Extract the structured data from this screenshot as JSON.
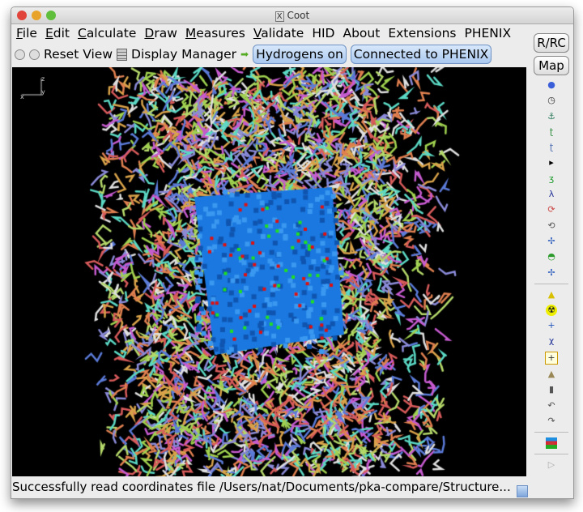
{
  "window": {
    "title": "Coot"
  },
  "menu": [
    {
      "pre": "",
      "u": "F",
      "post": "ile"
    },
    {
      "pre": "",
      "u": "E",
      "post": "dit"
    },
    {
      "pre": "",
      "u": "C",
      "post": "alculate"
    },
    {
      "pre": "",
      "u": "D",
      "post": "raw"
    },
    {
      "pre": "",
      "u": "M",
      "post": "easures"
    },
    {
      "pre": "",
      "u": "V",
      "post": "alidate"
    },
    {
      "pre": "HID",
      "u": "",
      "post": ""
    },
    {
      "pre": "About",
      "u": "",
      "post": ""
    },
    {
      "pre": "Extensions",
      "u": "",
      "post": ""
    },
    {
      "pre": "PHENIX",
      "u": "",
      "post": ""
    }
  ],
  "toolbar": {
    "reset_view": "Reset View",
    "display_manager": "Display Manager",
    "hydrogens": "Hydrogens on",
    "phenix": "Connected to PHENIX"
  },
  "side": {
    "rrc": "R/RC",
    "map": "Map",
    "icons": [
      "sphere-refine-icon",
      "clock-icon",
      "anchor-icon",
      "rotate-translate-zone-icon",
      "rigid-body-icon",
      "arrow-icon",
      "flip-peptide-icon",
      "side-chain-icon",
      "rotamer-icon",
      "auto-fit-rotamer-icon",
      "torsion-icon",
      "side-chain-180-icon",
      "pepflip-icon",
      "sep",
      "add-water-icon",
      "radioactive-icon",
      "add-atom-icon",
      "add-alt-conf-icon",
      "insert-icon",
      "stamp-icon",
      "trash-icon",
      "undo-icon",
      "redo-icon",
      "sep",
      "flag-icon",
      "sep",
      "play-icon"
    ]
  },
  "axes": {
    "x": "x",
    "y": "y",
    "z": "z"
  },
  "status": "Successfully read coordinates file /Users/nat/Documents/pka-compare/Structure...",
  "colors": {
    "bonds": [
      "#d9a34a",
      "#9fd14f",
      "#c65bd0",
      "#5b7bd8",
      "#e0e0e0",
      "#d85b5b",
      "#5bd8c4",
      "#b4d86a",
      "#8a8ad8",
      "#e08050"
    ],
    "map_blue": "#1a78e0",
    "map_green": "#20e020",
    "map_red": "#e01010"
  }
}
